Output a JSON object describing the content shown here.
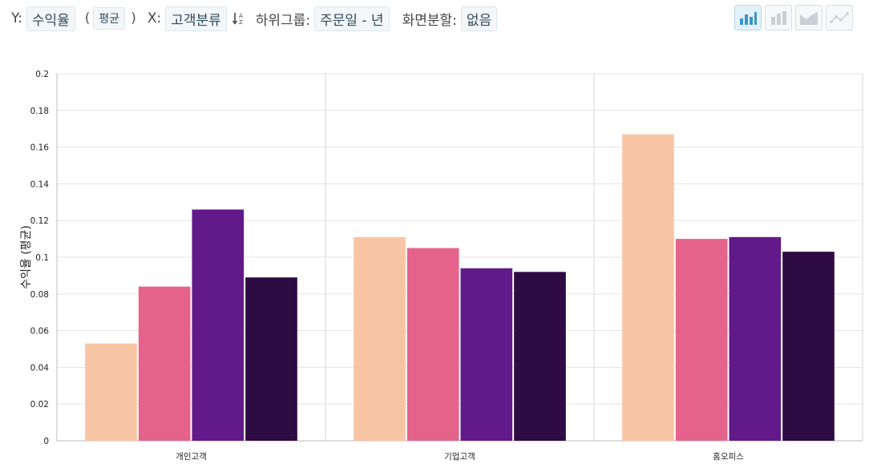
{
  "toolbar": {
    "y_prefix": "Y:",
    "y_field": "수익율",
    "paren_open": "(",
    "aggregate": "평균",
    "paren_close": ")",
    "x_prefix": "X:",
    "x_field": "고객분류",
    "subgroup_prefix": "하위그룹:",
    "subgroup_field": "주문일 - 년",
    "split_prefix": "화면분할:",
    "split_field": "없음",
    "sort_icon": "sort-alpha-icon",
    "chart_type_icons": [
      "bar-chart-icon",
      "stacked-bar-icon",
      "area-chart-icon",
      "line-chart-icon"
    ],
    "active_chart_type": "bar-chart-icon"
  },
  "chart_data": {
    "type": "bar",
    "ylabel": "수익율 (평균)",
    "xlabel": "",
    "ylim": [
      0,
      0.2
    ],
    "yticks": [
      "0",
      "0.02",
      "0.04",
      "0.06",
      "0.08",
      "0.1",
      "0.12",
      "0.14",
      "0.16",
      "0.18",
      "0.2"
    ],
    "grid": true,
    "legend": "none",
    "categories": [
      "개인고객",
      "기업고객",
      "홈오피스"
    ],
    "series": [
      {
        "color": "#f8c5a4",
        "values": [
          0.053,
          0.111,
          0.167
        ]
      },
      {
        "color": "#e5638b",
        "values": [
          0.084,
          0.105,
          0.11
        ]
      },
      {
        "color": "#621a8a",
        "values": [
          0.126,
          0.094,
          0.111
        ]
      },
      {
        "color": "#2e0b42",
        "values": [
          0.089,
          0.092,
          0.103
        ]
      }
    ]
  }
}
